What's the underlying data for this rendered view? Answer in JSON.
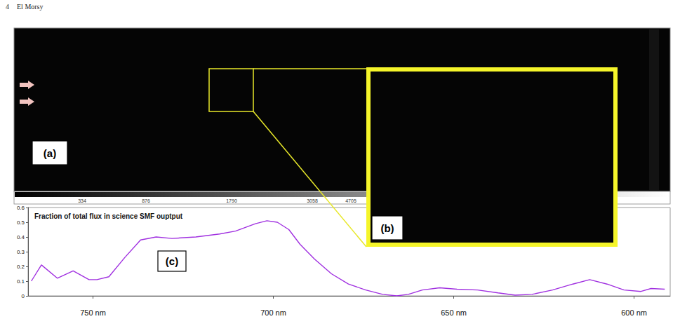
{
  "header": {
    "page_number": "4",
    "author": "El Morsy"
  },
  "figure": {
    "panels": {
      "a": {
        "label": "(a)"
      },
      "b": {
        "label": "(b)"
      },
      "c": {
        "label": "(c)"
      }
    },
    "colorbar": {
      "ticks": [
        334,
        876,
        1790,
        3058,
        4705
      ]
    }
  },
  "chart_data": {
    "type": "line",
    "title": "Fraction of total flux in science SMF ouptput",
    "x": [
      767.1,
      764.3,
      759.9,
      755.5,
      751.1,
      748.9,
      745.6,
      741.2,
      736.8,
      732.5,
      728.1,
      721.5,
      714.9,
      710.5,
      705.0,
      701.8,
      698.9,
      695.7,
      692.6,
      688.6,
      683.9,
      679.2,
      674.4,
      669.7,
      665.8,
      662.6,
      658.7,
      653.9,
      649.1,
      643.4,
      637.7,
      633.0,
      628.3,
      622.6,
      617.0,
      612.3,
      607.5,
      602.8,
      598.1,
      595.3,
      591.5
    ],
    "values": [
      0.1,
      0.21,
      0.12,
      0.17,
      0.11,
      0.11,
      0.13,
      0.26,
      0.38,
      0.4,
      0.39,
      0.4,
      0.42,
      0.44,
      0.49,
      0.51,
      0.5,
      0.45,
      0.35,
      0.25,
      0.15,
      0.08,
      0.04,
      0.01,
      0.0,
      0.01,
      0.04,
      0.055,
      0.045,
      0.04,
      0.02,
      0.005,
      0.01,
      0.04,
      0.08,
      0.11,
      0.08,
      0.04,
      0.03,
      0.05,
      0.045
    ],
    "color": "#a030e0",
    "xlim": [
      768,
      590
    ],
    "xticks": [
      {
        "value": 750,
        "label": "750 nm"
      },
      {
        "value": 700,
        "label": "700 nm"
      },
      {
        "value": 650,
        "label": "650 nm"
      },
      {
        "value": 600,
        "label": "600 nm"
      }
    ],
    "ylim": [
      0,
      0.6
    ],
    "yticks": [
      0,
      0.1,
      0.2,
      0.3,
      0.4,
      0.5,
      0.6
    ],
    "grid": false
  }
}
